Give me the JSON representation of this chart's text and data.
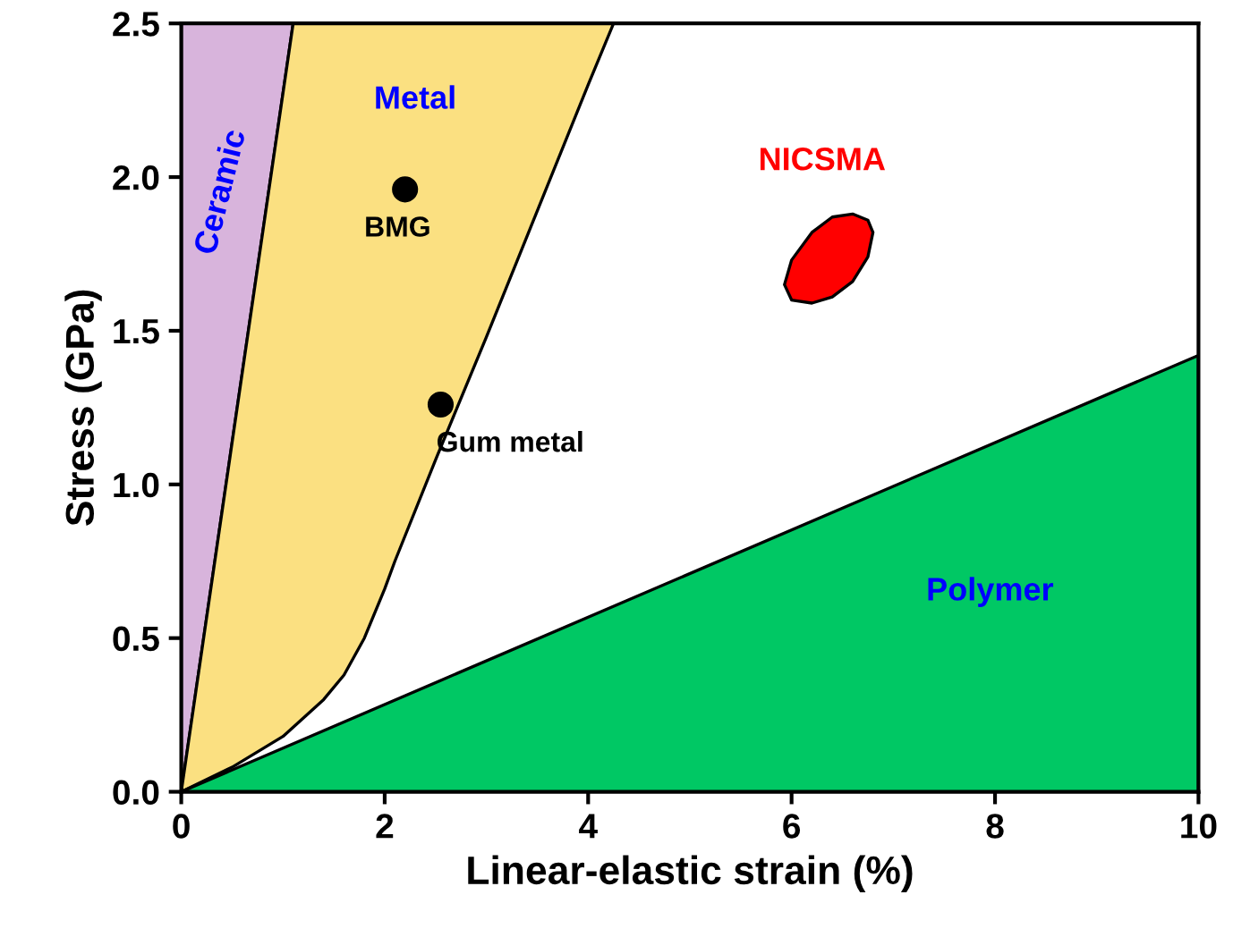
{
  "chart_data": {
    "type": "area",
    "xlabel": "Linear-elastic strain (%)",
    "ylabel": "Stress (GPa)",
    "xlim": [
      0,
      10
    ],
    "xticks": [
      0,
      2,
      4,
      6,
      8,
      10
    ],
    "ylim": [
      0,
      2.5
    ],
    "yticks": [
      {
        "value": 0,
        "label": "0.0"
      },
      {
        "value": 0.5,
        "label": "0.5"
      },
      {
        "value": 1,
        "label": "1.0"
      },
      {
        "value": 1.5,
        "label": "1.5"
      },
      {
        "value": 2,
        "label": "2.0"
      },
      {
        "value": 2.5,
        "label": "2.5"
      }
    ],
    "grid": false,
    "series": [
      {
        "name": "Ceramic",
        "color": "#d8b4dc",
        "x": [
          0,
          0,
          1.1
        ],
        "values": [
          0,
          2.5,
          2.5
        ]
      },
      {
        "name": "Metal",
        "color": "#fbe081",
        "x": [
          0,
          1.1,
          4.25,
          4.0,
          3.5,
          3.0,
          2.5,
          2.1,
          2.0,
          1.8,
          1.6,
          1.4,
          1.0,
          0.5
        ],
        "values": [
          0,
          2.5,
          2.5,
          2.3,
          1.89,
          1.48,
          1.08,
          0.75,
          0.66,
          0.5,
          0.38,
          0.3,
          0.18,
          0.08
        ]
      },
      {
        "name": "Polymer",
        "color": "#00c864",
        "x": [
          0,
          10,
          10
        ],
        "values": [
          0,
          1.42,
          0
        ]
      },
      {
        "name": "NICSMA",
        "color": "#ff0000",
        "x": [
          5.93,
          6.0,
          6.2,
          6.4,
          6.6,
          6.75,
          6.8,
          6.75,
          6.6,
          6.4,
          6.2,
          6.0
        ],
        "values": [
          1.65,
          1.73,
          1.82,
          1.87,
          1.88,
          1.86,
          1.82,
          1.74,
          1.66,
          1.61,
          1.59,
          1.6
        ]
      },
      {
        "name": "BMG",
        "type": "scatter",
        "color": "#000000",
        "x": [
          2.2
        ],
        "values": [
          1.96
        ],
        "marker": "circle"
      },
      {
        "name": "Gum metal",
        "type": "scatter",
        "color": "#000000",
        "x": [
          2.55
        ],
        "values": [
          1.26
        ],
        "marker": "circle"
      }
    ]
  }
}
